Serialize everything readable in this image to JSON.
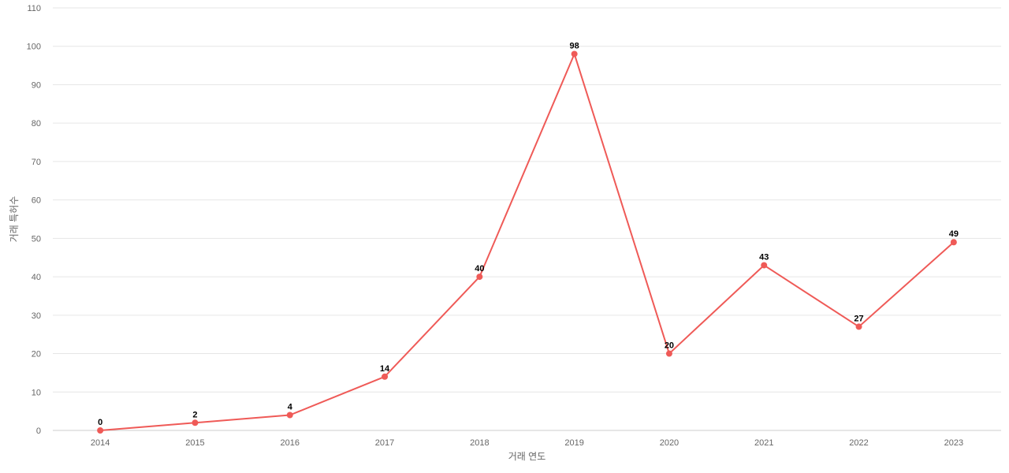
{
  "chart_data": {
    "type": "line",
    "categories": [
      "2014",
      "2015",
      "2016",
      "2017",
      "2018",
      "2019",
      "2020",
      "2021",
      "2022",
      "2023"
    ],
    "series": [
      {
        "values": [
          0,
          2,
          4,
          14,
          40,
          98,
          20,
          43,
          27,
          49
        ]
      }
    ],
    "xlabel": "거래 연도",
    "ylabel": "거래 특허수",
    "ylim": [
      0,
      110
    ],
    "yticks": [
      0,
      10,
      20,
      30,
      40,
      50,
      60,
      70,
      80,
      90,
      100,
      110
    ],
    "grid": true,
    "data_labels": true,
    "colors": {
      "line": "#ef5a57",
      "marker": "#ef5a57",
      "grid": "#e6e6e6"
    }
  }
}
